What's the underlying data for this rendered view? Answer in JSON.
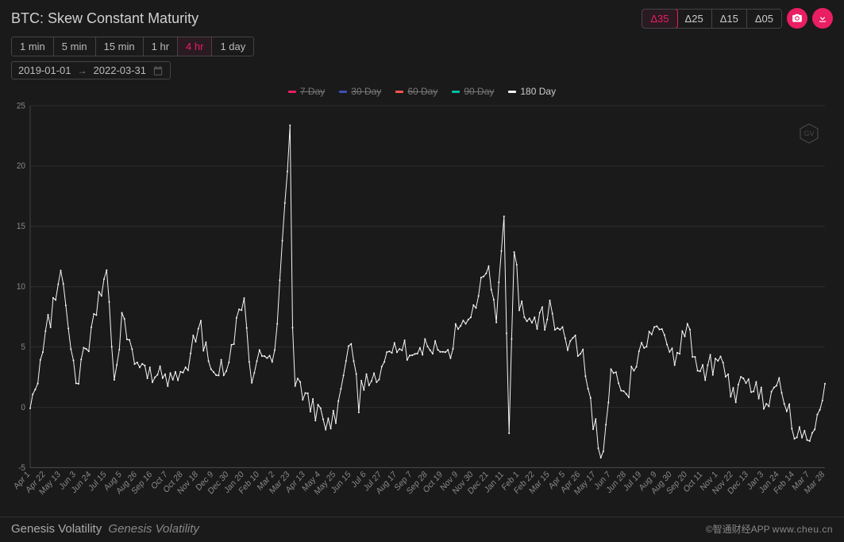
{
  "title": "BTC: Skew Constant Maturity",
  "deltas": {
    "items": [
      "Δ35",
      "Δ25",
      "Δ15",
      "Δ05"
    ],
    "active_index": 0
  },
  "timeframes": {
    "items": [
      "1 min",
      "5 min",
      "15 min",
      "1 hr",
      "4 hr",
      "1 day"
    ],
    "active_index": 4
  },
  "date_range": {
    "from": "2019-01-01",
    "to": "2022-03-31"
  },
  "legend": [
    {
      "label": "7 Day",
      "color": "#e91e63",
      "active": false
    },
    {
      "label": "30 Day",
      "color": "#3f51b5",
      "active": false
    },
    {
      "label": "60 Day",
      "color": "#ff5252",
      "active": false
    },
    {
      "label": "90 Day",
      "color": "#00bfa5",
      "active": false
    },
    {
      "label": "180 Day",
      "color": "#f5f5f5",
      "active": true
    }
  ],
  "chart": {
    "type": "line",
    "background": "#1a1a1a",
    "grid_color": "#2a2a2a",
    "axis_color": "#444444",
    "label_color": "#888888",
    "label_fontsize": 10,
    "series_color": "#f5f5f5",
    "point_radius": 1.0,
    "line_width": 1,
    "ylim": [
      -5,
      25
    ],
    "yticks": [
      -5,
      0,
      5,
      10,
      15,
      20,
      25
    ],
    "xticks": [
      "Apr 1",
      "Apr 22",
      "May 13",
      "Jun 3",
      "Jun 24",
      "Jul 15",
      "Aug 5",
      "Aug 26",
      "Sep 16",
      "Oct 7",
      "Oct 28",
      "Nov 18",
      "Dec 9",
      "Dec 30",
      "Jan 20",
      "Feb 10",
      "Mar 2",
      "Mar 23",
      "Apr 13",
      "May 4",
      "May 25",
      "Jun 15",
      "Jul 6",
      "Jul 27",
      "Aug 17",
      "Sep 7",
      "Sep 28",
      "Oct 19",
      "Nov 9",
      "Nov 30",
      "Dec 21",
      "Jan 11",
      "Feb 1",
      "Feb 22",
      "Mar 15",
      "Apr 5",
      "Apr 26",
      "May 17",
      "Jun 7",
      "Jun 28",
      "Jul 19",
      "Aug 9",
      "Aug 30",
      "Sep 20",
      "Oct 11",
      "Nov 1",
      "Nov 22",
      "Dec 13",
      "Jan 3",
      "Jan 24",
      "Feb 14",
      "Mar 7",
      "Mar 28"
    ],
    "xlim_index": [
      0,
      52
    ],
    "baseline_envelope": [
      [
        0,
        -1
      ],
      [
        1,
        5.5
      ],
      [
        2,
        11.5
      ],
      [
        3,
        2
      ],
      [
        4,
        6.5
      ],
      [
        5,
        11
      ],
      [
        5.5,
        2
      ],
      [
        6,
        8
      ],
      [
        7,
        3.5
      ],
      [
        8,
        3
      ],
      [
        9,
        2
      ],
      [
        10,
        2.5
      ],
      [
        11,
        7
      ],
      [
        12,
        2.5
      ],
      [
        13,
        4
      ],
      [
        14,
        9
      ],
      [
        14.5,
        2.5
      ],
      [
        15,
        4.5
      ],
      [
        16,
        4
      ],
      [
        17,
        23
      ],
      [
        17.2,
        3
      ],
      [
        18,
        1
      ],
      [
        19,
        -1
      ],
      [
        20,
        -0.5
      ],
      [
        21,
        6
      ],
      [
        21.5,
        0.5
      ],
      [
        22,
        2.5
      ],
      [
        23,
        3
      ],
      [
        24,
        5.5
      ],
      [
        25,
        4
      ],
      [
        26,
        5
      ],
      [
        27,
        4
      ],
      [
        28,
        6
      ],
      [
        29,
        8
      ],
      [
        30,
        12
      ],
      [
        30.5,
        7
      ],
      [
        31,
        16
      ],
      [
        31.3,
        -3
      ],
      [
        31.7,
        14
      ],
      [
        32,
        8
      ],
      [
        33,
        7
      ],
      [
        34,
        8
      ],
      [
        35,
        6
      ],
      [
        36,
        5
      ],
      [
        37,
        -2
      ],
      [
        37.3,
        -5
      ],
      [
        38,
        3
      ],
      [
        39,
        1
      ],
      [
        40,
        5
      ],
      [
        41,
        7
      ],
      [
        42,
        4
      ],
      [
        43,
        6.5
      ],
      [
        44,
        2.5
      ],
      [
        45,
        4
      ],
      [
        46,
        1
      ],
      [
        47,
        2.5
      ],
      [
        48,
        0
      ],
      [
        49,
        2.5
      ],
      [
        50,
        -2
      ],
      [
        51,
        -2.5
      ],
      [
        52,
        1
      ]
    ],
    "noise_amplitude": 1.6,
    "points_per_segment": 6
  },
  "footer": {
    "left_plain": "Genesis Volatility",
    "left_italic": "Genesis Volatility",
    "right_attr": "©智通财经APP",
    "right_wm": "www.cheu.cn"
  }
}
